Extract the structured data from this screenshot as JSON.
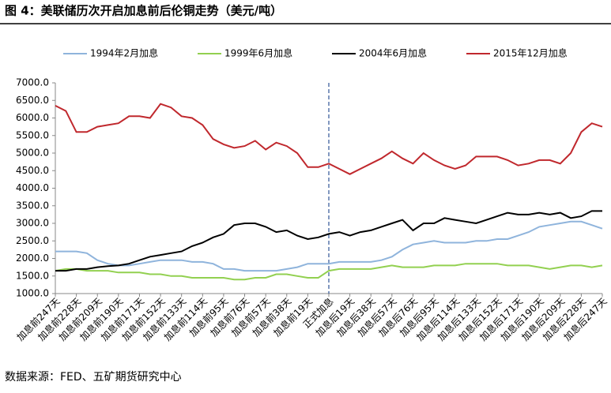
{
  "chart_data": {
    "type": "line",
    "title": "图 4：美联储历次开启加息前后伦铜走势（美元/吨）",
    "source": "数据来源：FED、五矿期货研究中心",
    "categories": [
      "加息前247天",
      null,
      "加息前228天",
      null,
      "加息前209天",
      null,
      "加息前190天",
      null,
      "加息前171天",
      null,
      "加息前152天",
      null,
      "加息前133天",
      null,
      "加息前114天",
      null,
      "加息前95天",
      null,
      "加息前76天",
      null,
      "加息前57天",
      null,
      "加息前38天",
      null,
      "加息前19天",
      null,
      "正式加息",
      null,
      "加息后19天",
      null,
      "加息后38天",
      null,
      "加息后57天",
      null,
      "加息后76天",
      null,
      "加息后95天",
      null,
      "加息后114天",
      null,
      "加息后133天",
      null,
      "加息后152天",
      null,
      "加息后171天",
      null,
      "加息后190天",
      null,
      "加息后209天",
      null,
      "加息后228天",
      null,
      "加息后247天"
    ],
    "series": [
      {
        "name": "1994年2月加息",
        "color": "#8fb4dc",
        "values": [
          2200,
          2200,
          2200,
          2150,
          1950,
          1850,
          1800,
          1800,
          1850,
          1900,
          1950,
          1950,
          1950,
          1900,
          1900,
          1850,
          1700,
          1700,
          1650,
          1650,
          1650,
          1650,
          1700,
          1750,
          1850,
          1850,
          1850,
          1900,
          1900,
          1900,
          1900,
          1950,
          2050,
          2250,
          2400,
          2450,
          2500,
          2450,
          2450,
          2450,
          2500,
          2500,
          2550,
          2550,
          2650,
          2750,
          2900,
          2950,
          3000,
          3050,
          3050,
          2950,
          2850
        ]
      },
      {
        "name": "1999年6月加息",
        "color": "#92d050",
        "values": [
          1650,
          1700,
          1700,
          1650,
          1650,
          1650,
          1600,
          1600,
          1600,
          1550,
          1550,
          1500,
          1500,
          1450,
          1450,
          1450,
          1450,
          1400,
          1400,
          1450,
          1450,
          1550,
          1550,
          1500,
          1450,
          1450,
          1650,
          1700,
          1700,
          1700,
          1700,
          1750,
          1800,
          1750,
          1750,
          1750,
          1800,
          1800,
          1800,
          1850,
          1850,
          1850,
          1850,
          1800,
          1800,
          1800,
          1750,
          1700,
          1750,
          1800,
          1800,
          1750,
          1800
        ]
      },
      {
        "name": "2004年6月加息",
        "color": "#000000",
        "values": [
          1650,
          1650,
          1700,
          1700,
          1750,
          1780,
          1800,
          1850,
          1950,
          2050,
          2100,
          2150,
          2200,
          2350,
          2450,
          2600,
          2700,
          2950,
          3000,
          3000,
          2900,
          2750,
          2800,
          2650,
          2550,
          2600,
          2700,
          2750,
          2650,
          2750,
          2800,
          2900,
          3000,
          3100,
          2800,
          3000,
          3000,
          3150,
          3100,
          3050,
          3000,
          3100,
          3200,
          3300,
          3250,
          3250,
          3300,
          3250,
          3300,
          3150,
          3200,
          3350,
          3350
        ]
      },
      {
        "name": "2015年12月加息",
        "color": "#c0282d",
        "values": [
          6350,
          6200,
          5600,
          5600,
          5750,
          5800,
          5850,
          6050,
          6050,
          6000,
          6400,
          6300,
          6050,
          6000,
          5800,
          5400,
          5250,
          5150,
          5200,
          5350,
          5100,
          5300,
          5200,
          5000,
          4600,
          4600,
          4700,
          4550,
          4400,
          4550,
          4700,
          4850,
          5050,
          4850,
          4700,
          5000,
          4800,
          4650,
          4550,
          4650,
          4900,
          4900,
          4900,
          4800,
          4650,
          4700,
          4800,
          4800,
          4700,
          5000,
          5600,
          5850,
          5750
        ]
      }
    ],
    "ylim": [
      1000,
      7000
    ],
    "yticks": [
      {
        "value": 1000,
        "label": "1000.0"
      },
      {
        "value": 1500,
        "label": "1500.0"
      },
      {
        "value": 2000,
        "label": "2000.0"
      },
      {
        "value": 2500,
        "label": "2500.0"
      },
      {
        "value": 3000,
        "label": "3000.0"
      },
      {
        "value": 3500,
        "label": "3500.0"
      },
      {
        "value": 4000,
        "label": "4000.0"
      },
      {
        "value": 4500,
        "label": "4500.0"
      },
      {
        "value": 5000,
        "label": "5000.0"
      },
      {
        "value": 5500,
        "label": "5500.0"
      },
      {
        "value": 6000,
        "label": "6000.0"
      },
      {
        "value": 6500,
        "label": "6500.0"
      },
      {
        "value": 7000,
        "label": "7000.0"
      }
    ],
    "grid": false
  }
}
